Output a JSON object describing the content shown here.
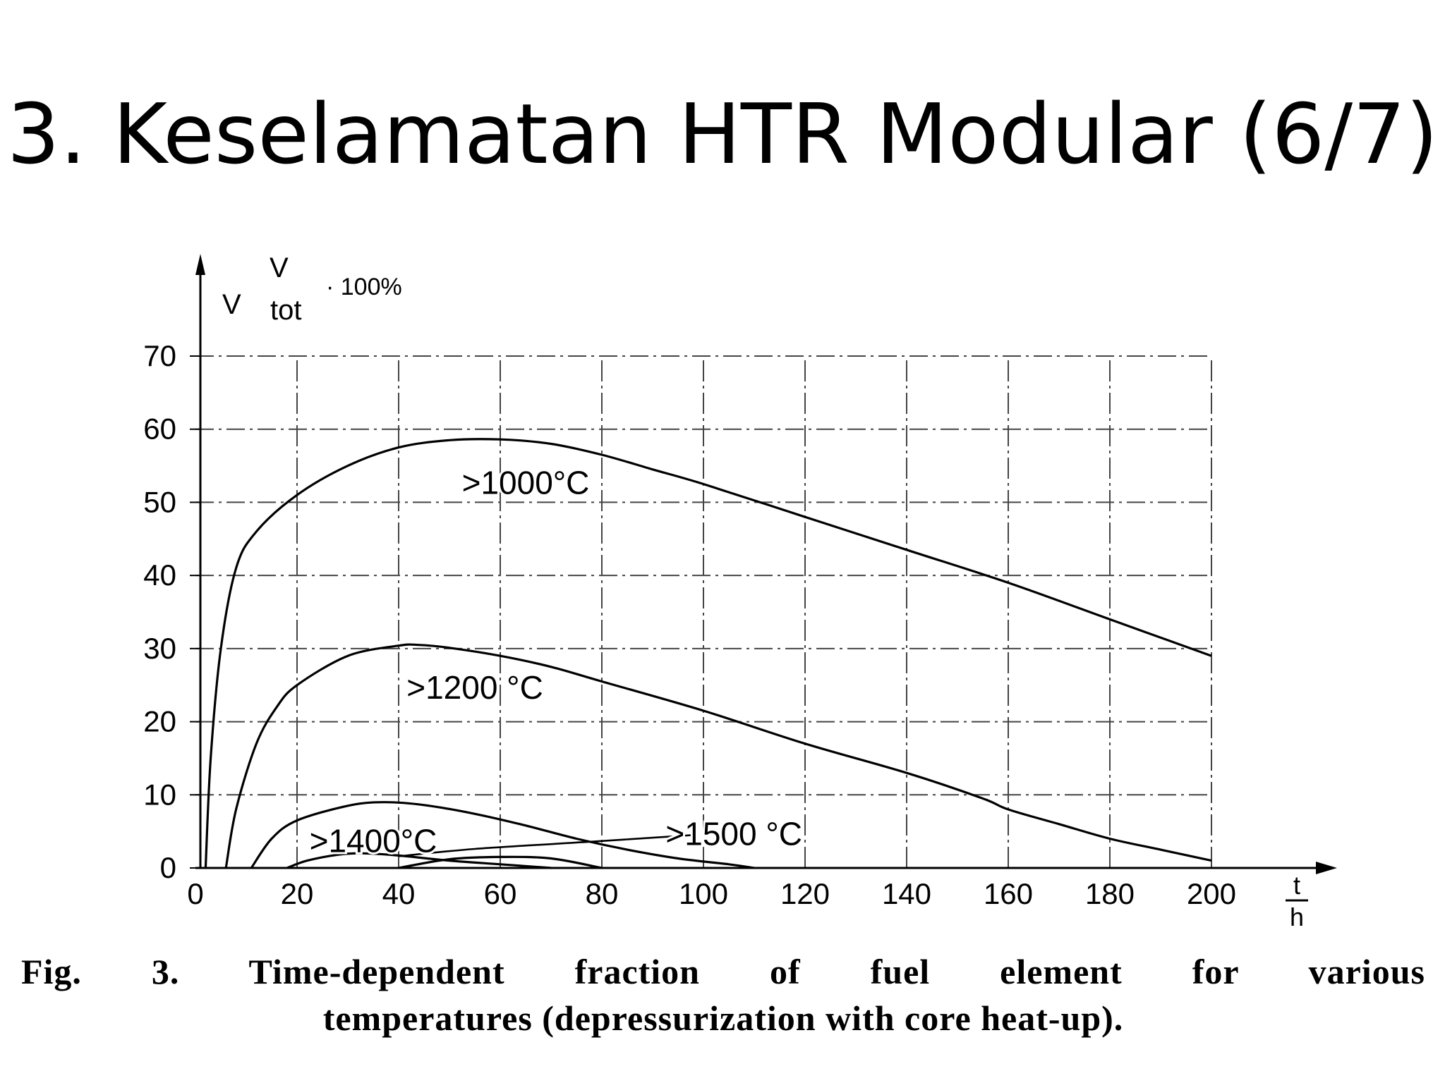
{
  "slide": {
    "title": "3. Keselamatan HTR Modular (6/7)"
  },
  "caption": {
    "line1": "Fig. 3. Time-dependent fraction of fuel element for various",
    "line2": "temperatures (depressurization with core heat-up)."
  },
  "chart_data": {
    "type": "line",
    "title": "",
    "ylabel": {
      "num": "V",
      "den": "V",
      "sub": "tot",
      "suffix": "· 100%"
    },
    "xlabel": {
      "num": "t",
      "den": "h"
    },
    "xlim": [
      0,
      200
    ],
    "ylim": [
      0,
      70
    ],
    "xticks": [
      0,
      20,
      40,
      60,
      80,
      100,
      120,
      140,
      160,
      180,
      200
    ],
    "yticks": [
      0,
      10,
      20,
      30,
      40,
      50,
      60,
      70
    ],
    "grid": true,
    "series": [
      {
        "name": ">1000°C",
        "points": [
          [
            2,
            0
          ],
          [
            3,
            15
          ],
          [
            5,
            30
          ],
          [
            8,
            41
          ],
          [
            12,
            46
          ],
          [
            20,
            51
          ],
          [
            30,
            55
          ],
          [
            40,
            57.5
          ],
          [
            50,
            58.5
          ],
          [
            60,
            58.6
          ],
          [
            70,
            58
          ],
          [
            80,
            56.5
          ],
          [
            90,
            54.5
          ],
          [
            100,
            52.5
          ],
          [
            120,
            48
          ],
          [
            140,
            43.5
          ],
          [
            160,
            39
          ],
          [
            180,
            34
          ],
          [
            200,
            29
          ]
        ]
      },
      {
        "name": ">1200 °C",
        "points": [
          [
            6,
            0
          ],
          [
            8,
            8
          ],
          [
            12,
            17
          ],
          [
            16,
            22
          ],
          [
            20,
            25
          ],
          [
            30,
            29
          ],
          [
            40,
            30.4
          ],
          [
            44,
            30.5
          ],
          [
            50,
            30.1
          ],
          [
            60,
            29
          ],
          [
            70,
            27.5
          ],
          [
            80,
            25.5
          ],
          [
            100,
            21.5
          ],
          [
            120,
            17
          ],
          [
            140,
            13
          ],
          [
            155,
            9.5
          ],
          [
            160,
            8
          ],
          [
            170,
            6
          ],
          [
            180,
            4
          ],
          [
            190,
            2.5
          ],
          [
            200,
            1
          ]
        ]
      },
      {
        "name": ">1400°C",
        "points": [
          [
            11,
            0
          ],
          [
            15,
            4
          ],
          [
            20,
            6.5
          ],
          [
            30,
            8.5
          ],
          [
            37,
            9
          ],
          [
            45,
            8.6
          ],
          [
            55,
            7.4
          ],
          [
            65,
            5.8
          ],
          [
            75,
            4
          ],
          [
            85,
            2.5
          ],
          [
            95,
            1.3
          ],
          [
            105,
            0.5
          ],
          [
            110,
            0
          ]
        ]
      },
      {
        "name": ">1500 °C",
        "points": [
          [
            18,
            0
          ],
          [
            22,
            1
          ],
          [
            28,
            1.8
          ],
          [
            33,
            2
          ],
          [
            40,
            1.7
          ],
          [
            50,
            1
          ],
          [
            60,
            0.5
          ],
          [
            70,
            0
          ]
        ]
      },
      {
        "name": "",
        "points": [
          [
            40,
            0
          ],
          [
            50,
            1.2
          ],
          [
            60,
            1.5
          ],
          [
            70,
            1.3
          ],
          [
            80,
            0
          ]
        ]
      }
    ],
    "annotations": [
      {
        "text": ">1000°C",
        "x": 65,
        "y": 52.5
      },
      {
        "text": ">1200 °C",
        "x": 55,
        "y": 24.5
      },
      {
        "text": ">1400°C",
        "x": 35,
        "y": 3.5
      },
      {
        "text": ">1500 °C",
        "x": 106,
        "y": 4.5
      }
    ],
    "pointer_1500": [
      [
        98,
        4.5
      ],
      [
        78,
        3.6
      ],
      [
        55,
        2.6
      ],
      [
        40,
        1.6
      ]
    ]
  }
}
